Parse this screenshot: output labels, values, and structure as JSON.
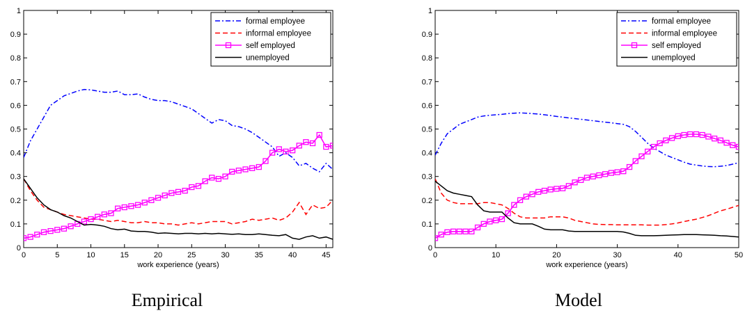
{
  "chart_data": [
    {
      "type": "line",
      "title": "",
      "caption": "Empirical",
      "xlabel": "work experience (years)",
      "ylabel": "",
      "xlim": [
        0,
        46
      ],
      "ylim": [
        0,
        1
      ],
      "xticks": [
        "0",
        "5",
        "10",
        "15",
        "20",
        "25",
        "30",
        "35",
        "40",
        "45"
      ],
      "xtick_values": [
        0,
        5,
        10,
        15,
        20,
        25,
        30,
        35,
        40,
        45
      ],
      "yticks": [
        "0",
        "0.1",
        "0.2",
        "0.3",
        "0.4",
        "0.5",
        "0.6",
        "0.7",
        "0.8",
        "0.9",
        "1"
      ],
      "ytick_values": [
        0,
        0.1,
        0.2,
        0.3,
        0.4,
        0.5,
        0.6,
        0.7,
        0.8,
        0.9,
        1
      ],
      "grid": false,
      "legend_position": "top-right",
      "series": [
        {
          "name": "formal employee",
          "color": "#0000ff",
          "dash": "dashdot",
          "marker": "none",
          "x": [
            0,
            1,
            2,
            3,
            4,
            5,
            6,
            7,
            8,
            9,
            10,
            11,
            12,
            13,
            14,
            15,
            16,
            17,
            18,
            19,
            20,
            21,
            22,
            23,
            24,
            25,
            26,
            27,
            28,
            29,
            30,
            31,
            32,
            33,
            34,
            35,
            36,
            37,
            38,
            39,
            40,
            41,
            42,
            43,
            44,
            45,
            46
          ],
          "y": [
            0.38,
            0.45,
            0.5,
            0.55,
            0.6,
            0.62,
            0.64,
            0.65,
            0.66,
            0.667,
            0.665,
            0.66,
            0.655,
            0.655,
            0.66,
            0.645,
            0.645,
            0.648,
            0.635,
            0.625,
            0.62,
            0.62,
            0.615,
            0.605,
            0.595,
            0.585,
            0.565,
            0.545,
            0.525,
            0.54,
            0.535,
            0.515,
            0.51,
            0.5,
            0.485,
            0.465,
            0.445,
            0.425,
            0.385,
            0.4,
            0.38,
            0.345,
            0.355,
            0.335,
            0.32,
            0.355,
            0.33
          ]
        },
        {
          "name": "informal employee",
          "color": "#ff0000",
          "dash": "dashed",
          "marker": "none",
          "x": [
            0,
            1,
            2,
            3,
            4,
            5,
            6,
            7,
            8,
            9,
            10,
            11,
            12,
            13,
            14,
            15,
            16,
            17,
            18,
            19,
            20,
            21,
            22,
            23,
            24,
            25,
            26,
            27,
            28,
            29,
            30,
            31,
            32,
            33,
            34,
            35,
            36,
            37,
            38,
            39,
            40,
            41,
            42,
            43,
            44,
            45,
            46
          ],
          "y": [
            0.29,
            0.24,
            0.2,
            0.17,
            0.16,
            0.15,
            0.14,
            0.135,
            0.13,
            0.125,
            0.12,
            0.12,
            0.115,
            0.11,
            0.115,
            0.11,
            0.105,
            0.105,
            0.11,
            0.105,
            0.105,
            0.1,
            0.1,
            0.095,
            0.1,
            0.105,
            0.1,
            0.105,
            0.11,
            0.11,
            0.11,
            0.1,
            0.105,
            0.11,
            0.12,
            0.115,
            0.12,
            0.125,
            0.115,
            0.125,
            0.15,
            0.19,
            0.14,
            0.18,
            0.165,
            0.17,
            0.2
          ]
        },
        {
          "name": "self employed",
          "color": "#ff00ff",
          "dash": "solid",
          "marker": "square",
          "x": [
            0,
            1,
            2,
            3,
            4,
            5,
            6,
            7,
            8,
            9,
            10,
            11,
            12,
            13,
            14,
            15,
            16,
            17,
            18,
            19,
            20,
            21,
            22,
            23,
            24,
            25,
            26,
            27,
            28,
            29,
            30,
            31,
            32,
            33,
            34,
            35,
            36,
            37,
            38,
            39,
            40,
            41,
            42,
            43,
            44,
            45,
            46
          ],
          "y": [
            0.04,
            0.045,
            0.055,
            0.065,
            0.07,
            0.075,
            0.08,
            0.09,
            0.1,
            0.11,
            0.12,
            0.13,
            0.14,
            0.145,
            0.165,
            0.17,
            0.175,
            0.18,
            0.19,
            0.2,
            0.21,
            0.22,
            0.23,
            0.235,
            0.24,
            0.255,
            0.26,
            0.28,
            0.295,
            0.29,
            0.3,
            0.32,
            0.325,
            0.33,
            0.335,
            0.34,
            0.365,
            0.4,
            0.415,
            0.405,
            0.41,
            0.43,
            0.445,
            0.44,
            0.475,
            0.425,
            0.43
          ]
        },
        {
          "name": "unemployed",
          "color": "#000000",
          "dash": "solid",
          "marker": "none",
          "x": [
            0,
            1,
            2,
            3,
            4,
            5,
            6,
            7,
            8,
            9,
            10,
            11,
            12,
            13,
            14,
            15,
            16,
            17,
            18,
            19,
            20,
            21,
            22,
            23,
            24,
            25,
            26,
            27,
            28,
            29,
            30,
            31,
            32,
            33,
            34,
            35,
            36,
            37,
            38,
            39,
            40,
            41,
            42,
            43,
            44,
            45,
            46
          ],
          "y": [
            0.29,
            0.25,
            0.21,
            0.18,
            0.16,
            0.15,
            0.135,
            0.125,
            0.11,
            0.095,
            0.098,
            0.095,
            0.09,
            0.08,
            0.075,
            0.078,
            0.07,
            0.068,
            0.068,
            0.065,
            0.06,
            0.062,
            0.06,
            0.058,
            0.06,
            0.06,
            0.058,
            0.06,
            0.058,
            0.06,
            0.058,
            0.056,
            0.058,
            0.055,
            0.055,
            0.058,
            0.055,
            0.052,
            0.05,
            0.055,
            0.04,
            0.035,
            0.045,
            0.05,
            0.04,
            0.045,
            0.035
          ]
        }
      ]
    },
    {
      "type": "line",
      "title": "",
      "caption": "Model",
      "xlabel": "work experience (years)",
      "ylabel": "",
      "xlim": [
        0,
        50
      ],
      "ylim": [
        0,
        1
      ],
      "xticks": [
        "0",
        "10",
        "20",
        "30",
        "40",
        "50"
      ],
      "xtick_values": [
        0,
        10,
        20,
        30,
        40,
        50
      ],
      "yticks": [
        "0",
        "0.1",
        "0.2",
        "0.3",
        "0.4",
        "0.5",
        "0.6",
        "0.7",
        "0.8",
        "0.9",
        "1"
      ],
      "ytick_values": [
        0,
        0.1,
        0.2,
        0.3,
        0.4,
        0.5,
        0.6,
        0.7,
        0.8,
        0.9,
        1
      ],
      "grid": false,
      "legend_position": "top-right",
      "series": [
        {
          "name": "formal employee",
          "color": "#0000ff",
          "dash": "dashdot",
          "marker": "none",
          "x": [
            0,
            1,
            2,
            3,
            4,
            5,
            6,
            7,
            8,
            9,
            10,
            11,
            12,
            13,
            14,
            15,
            16,
            17,
            18,
            19,
            20,
            21,
            22,
            23,
            24,
            25,
            26,
            27,
            28,
            29,
            30,
            31,
            32,
            33,
            34,
            35,
            36,
            37,
            38,
            39,
            40,
            41,
            42,
            43,
            44,
            45,
            46,
            47,
            48,
            49,
            50
          ],
          "y": [
            0.39,
            0.44,
            0.48,
            0.5,
            0.52,
            0.53,
            0.54,
            0.55,
            0.555,
            0.558,
            0.56,
            0.562,
            0.565,
            0.567,
            0.568,
            0.567,
            0.565,
            0.563,
            0.56,
            0.557,
            0.553,
            0.55,
            0.547,
            0.544,
            0.541,
            0.538,
            0.535,
            0.532,
            0.529,
            0.526,
            0.523,
            0.52,
            0.51,
            0.49,
            0.465,
            0.44,
            0.42,
            0.405,
            0.39,
            0.38,
            0.37,
            0.36,
            0.352,
            0.348,
            0.344,
            0.342,
            0.341,
            0.343,
            0.346,
            0.352,
            0.358
          ]
        },
        {
          "name": "informal employee",
          "color": "#ff0000",
          "dash": "dashed",
          "marker": "none",
          "x": [
            0,
            1,
            2,
            3,
            4,
            5,
            6,
            7,
            8,
            9,
            10,
            11,
            12,
            13,
            14,
            15,
            16,
            17,
            18,
            19,
            20,
            21,
            22,
            23,
            24,
            25,
            26,
            27,
            28,
            29,
            30,
            31,
            32,
            33,
            34,
            35,
            36,
            37,
            38,
            39,
            40,
            41,
            42,
            43,
            44,
            45,
            46,
            47,
            48,
            49,
            50
          ],
          "y": [
            0.29,
            0.23,
            0.2,
            0.19,
            0.185,
            0.185,
            0.185,
            0.185,
            0.19,
            0.19,
            0.185,
            0.18,
            0.165,
            0.145,
            0.13,
            0.125,
            0.125,
            0.125,
            0.125,
            0.13,
            0.13,
            0.13,
            0.125,
            0.115,
            0.11,
            0.105,
            0.1,
            0.098,
            0.097,
            0.097,
            0.096,
            0.096,
            0.096,
            0.096,
            0.096,
            0.095,
            0.095,
            0.095,
            0.097,
            0.1,
            0.104,
            0.11,
            0.115,
            0.12,
            0.127,
            0.135,
            0.145,
            0.155,
            0.162,
            0.17,
            0.178
          ]
        },
        {
          "name": "self employed",
          "color": "#ff00ff",
          "dash": "solid",
          "marker": "square",
          "x": [
            0,
            1,
            2,
            3,
            4,
            5,
            6,
            7,
            8,
            9,
            10,
            11,
            12,
            13,
            14,
            15,
            16,
            17,
            18,
            19,
            20,
            21,
            22,
            23,
            24,
            25,
            26,
            27,
            28,
            29,
            30,
            31,
            32,
            33,
            34,
            35,
            36,
            37,
            38,
            39,
            40,
            41,
            42,
            43,
            44,
            45,
            46,
            47,
            48,
            49,
            50
          ],
          "y": [
            0.04,
            0.055,
            0.065,
            0.068,
            0.068,
            0.068,
            0.068,
            0.085,
            0.1,
            0.11,
            0.115,
            0.12,
            0.145,
            0.18,
            0.2,
            0.215,
            0.225,
            0.235,
            0.24,
            0.245,
            0.248,
            0.25,
            0.26,
            0.275,
            0.285,
            0.295,
            0.3,
            0.305,
            0.31,
            0.315,
            0.318,
            0.322,
            0.34,
            0.365,
            0.385,
            0.405,
            0.425,
            0.44,
            0.452,
            0.462,
            0.47,
            0.475,
            0.478,
            0.478,
            0.475,
            0.468,
            0.46,
            0.452,
            0.442,
            0.432,
            0.425
          ]
        },
        {
          "name": "unemployed",
          "color": "#000000",
          "dash": "solid",
          "marker": "none",
          "x": [
            0,
            1,
            2,
            3,
            4,
            5,
            6,
            7,
            8,
            9,
            10,
            11,
            12,
            13,
            14,
            15,
            16,
            17,
            18,
            19,
            20,
            21,
            22,
            23,
            24,
            25,
            26,
            27,
            28,
            29,
            30,
            31,
            32,
            33,
            34,
            35,
            36,
            37,
            38,
            39,
            40,
            41,
            42,
            43,
            44,
            45,
            46,
            47,
            48,
            49,
            50
          ],
          "y": [
            0.28,
            0.26,
            0.24,
            0.23,
            0.225,
            0.22,
            0.215,
            0.18,
            0.155,
            0.15,
            0.15,
            0.15,
            0.125,
            0.105,
            0.1,
            0.1,
            0.1,
            0.09,
            0.078,
            0.075,
            0.075,
            0.075,
            0.07,
            0.068,
            0.068,
            0.068,
            0.068,
            0.068,
            0.068,
            0.068,
            0.068,
            0.066,
            0.06,
            0.052,
            0.05,
            0.05,
            0.05,
            0.051,
            0.052,
            0.053,
            0.054,
            0.055,
            0.055,
            0.055,
            0.054,
            0.053,
            0.052,
            0.05,
            0.049,
            0.047,
            0.045
          ]
        }
      ]
    }
  ]
}
